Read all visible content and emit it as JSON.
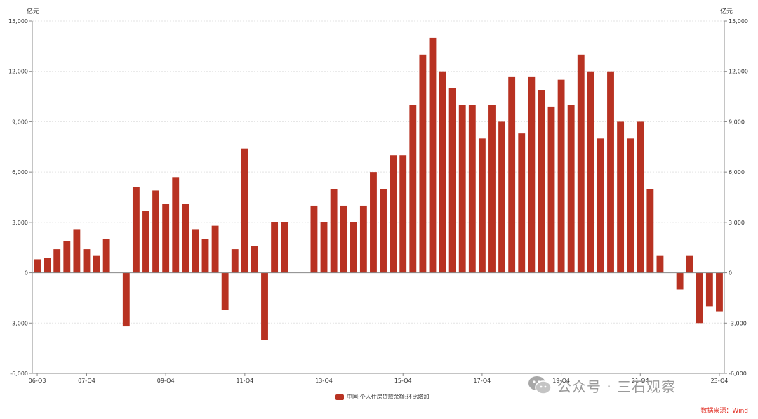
{
  "chart_data": {
    "type": "bar",
    "unit_left": "亿元",
    "unit_right": "亿元",
    "ylim": [
      -6000,
      15000
    ],
    "y_ticks": [
      -6000,
      -3000,
      0,
      3000,
      6000,
      9000,
      12000,
      15000
    ],
    "y_tick_labels": [
      "-6,000",
      "-3,000",
      "0",
      "3,000",
      "6,000",
      "9,000",
      "12,000",
      "15,000"
    ],
    "x_tick_labels": [
      "06-Q3",
      "07-Q4",
      "09-Q4",
      "11-Q4",
      "13-Q4",
      "15-Q4",
      "17-Q4",
      "19-Q4",
      "21-Q4",
      "23-Q4"
    ],
    "x_tick_indices": [
      0,
      5,
      13,
      21,
      29,
      37,
      45,
      53,
      61,
      69
    ],
    "grid": true,
    "legend_position": "bottom-center",
    "series": [
      {
        "name": "中国:个人住房贷款余额:环比增加",
        "color": "#b83222",
        "values": [
          800,
          900,
          1400,
          1900,
          2600,
          1400,
          1000,
          2000,
          null,
          -3200,
          5100,
          3700,
          4900,
          4100,
          5700,
          4100,
          2600,
          2000,
          2800,
          -2200,
          1400,
          7400,
          1600,
          -4000,
          3000,
          3000,
          null,
          null,
          4000,
          3000,
          5000,
          4000,
          3000,
          4000,
          6000,
          5000,
          7000,
          7000,
          10000,
          13000,
          14000,
          12000,
          11000,
          10000,
          10000,
          8000,
          10000,
          9000,
          11700,
          8300,
          11700,
          10900,
          9900,
          11500,
          10000,
          13000,
          12000,
          8000,
          12000,
          9000,
          8000,
          9000,
          5000,
          1000,
          null,
          -1000,
          1000,
          -3000,
          -2000,
          -2300
        ]
      }
    ]
  },
  "source_text": "数据来源：Wind",
  "watermark_text": "公众号 · 三石观察",
  "colors": {
    "bar": "#b83222",
    "source": "#e0281e",
    "axis": "#888888",
    "grid": "#e3e3e3"
  }
}
